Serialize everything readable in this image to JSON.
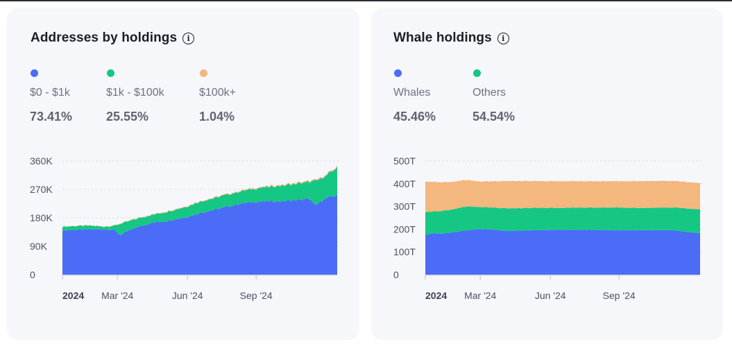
{
  "cards": [
    {
      "title": "Addresses by holdings",
      "legend": [
        {
          "label": "$0 - $1k",
          "value": "73.41%",
          "color": "#4a6cf7"
        },
        {
          "label": "$1k - $100k",
          "value": "25.55%",
          "color": "#16c784"
        },
        {
          "label": "$100k+",
          "value": "1.04%",
          "color": "#f4b77e"
        }
      ]
    },
    {
      "title": "Whale holdings",
      "legend": [
        {
          "label": "Whales",
          "value": "45.46%",
          "color": "#4a6cf7"
        },
        {
          "label": "Others",
          "value": "54.54%",
          "color": "#16c784"
        }
      ]
    }
  ],
  "chart_data": [
    {
      "type": "area",
      "stacked": true,
      "title": "Addresses by holdings",
      "ylim": [
        0,
        360000
      ],
      "yticks": [
        "360K",
        "270K",
        "180K",
        "90K",
        "0"
      ],
      "xticks": [
        {
          "label": "2024",
          "bold": true,
          "t": 0.0
        },
        {
          "label": "Mar '24",
          "bold": false,
          "t": 0.2
        },
        {
          "label": "Jun '24",
          "bold": false,
          "t": 0.455
        },
        {
          "label": "Sep '24",
          "bold": false,
          "t": 0.705
        }
      ],
      "grid": true,
      "series": [
        {
          "name": "$0 - $1k",
          "color": "#4a6cf7",
          "points": [
            [
              0.0,
              140000
            ],
            [
              0.05,
              142000
            ],
            [
              0.1,
              143000
            ],
            [
              0.15,
              143000
            ],
            [
              0.19,
              142000
            ],
            [
              0.21,
              124000
            ],
            [
              0.23,
              135000
            ],
            [
              0.27,
              150000
            ],
            [
              0.33,
              165000
            ],
            [
              0.38,
              170000
            ],
            [
              0.45,
              182000
            ],
            [
              0.5,
              195000
            ],
            [
              0.55,
              205000
            ],
            [
              0.6,
              215000
            ],
            [
              0.65,
              225000
            ],
            [
              0.7,
              230000
            ],
            [
              0.75,
              232000
            ],
            [
              0.8,
              232000
            ],
            [
              0.85,
              236000
            ],
            [
              0.9,
              240000
            ],
            [
              0.92,
              218000
            ],
            [
              0.95,
              238000
            ],
            [
              0.97,
              244000
            ],
            [
              1.0,
              252000
            ]
          ]
        },
        {
          "name": "$1k - $100k",
          "color": "#16c784",
          "points": [
            [
              0.0,
              12000
            ],
            [
              0.05,
              12000
            ],
            [
              0.1,
              12000
            ],
            [
              0.15,
              9000
            ],
            [
              0.19,
              13000
            ],
            [
              0.21,
              37000
            ],
            [
              0.23,
              31000
            ],
            [
              0.27,
              27000
            ],
            [
              0.33,
              25000
            ],
            [
              0.38,
              29000
            ],
            [
              0.45,
              33000
            ],
            [
              0.5,
              36000
            ],
            [
              0.55,
              37000
            ],
            [
              0.6,
              38000
            ],
            [
              0.65,
              39000
            ],
            [
              0.7,
              42000
            ],
            [
              0.75,
              45000
            ],
            [
              0.8,
              50000
            ],
            [
              0.85,
              52000
            ],
            [
              0.9,
              54000
            ],
            [
              0.92,
              79000
            ],
            [
              0.95,
              70000
            ],
            [
              0.97,
              76000
            ],
            [
              1.0,
              88000
            ]
          ]
        },
        {
          "name": "$100k+",
          "color": "#f4b77e",
          "points": [
            [
              0.0,
              800
            ],
            [
              0.1,
              900
            ],
            [
              0.2,
              1200
            ],
            [
              0.3,
              1500
            ],
            [
              0.4,
              1800
            ],
            [
              0.5,
              2100
            ],
            [
              0.6,
              2400
            ],
            [
              0.7,
              2700
            ],
            [
              0.8,
              3000
            ],
            [
              0.9,
              3200
            ],
            [
              1.0,
              3500
            ]
          ]
        }
      ]
    },
    {
      "type": "area",
      "stacked": true,
      "title": "Whale holdings",
      "ylim": [
        0,
        500
      ],
      "yticks": [
        "500T",
        "400T",
        "300T",
        "200T",
        "100T",
        "0"
      ],
      "xticks": [
        {
          "label": "2024",
          "bold": true,
          "t": 0.0
        },
        {
          "label": "Mar '24",
          "bold": false,
          "t": 0.2
        },
        {
          "label": "Jun '24",
          "bold": false,
          "t": 0.455
        },
        {
          "label": "Sep '24",
          "bold": false,
          "t": 0.705
        }
      ],
      "grid": true,
      "series": [
        {
          "name": "Whales",
          "color": "#4a6cf7",
          "points": [
            [
              0.0,
              175
            ],
            [
              0.03,
              182
            ],
            [
              0.06,
              180
            ],
            [
              0.1,
              187
            ],
            [
              0.15,
              195
            ],
            [
              0.2,
              200
            ],
            [
              0.25,
              198
            ],
            [
              0.3,
              192
            ],
            [
              0.4,
              195
            ],
            [
              0.5,
              197
            ],
            [
              0.6,
              197
            ],
            [
              0.7,
              195
            ],
            [
              0.8,
              195
            ],
            [
              0.9,
              195
            ],
            [
              0.95,
              188
            ],
            [
              1.0,
              182
            ]
          ]
        },
        {
          "name": "Others",
          "color": "#16c784",
          "points": [
            [
              0.0,
              100
            ],
            [
              0.03,
              96
            ],
            [
              0.06,
              100
            ],
            [
              0.1,
              101
            ],
            [
              0.15,
              105
            ],
            [
              0.2,
              97
            ],
            [
              0.25,
              97
            ],
            [
              0.3,
              100
            ],
            [
              0.4,
              98
            ],
            [
              0.5,
              97
            ],
            [
              0.6,
              98
            ],
            [
              0.7,
              100
            ],
            [
              0.8,
              98
            ],
            [
              0.9,
              100
            ],
            [
              0.95,
              103
            ],
            [
              1.0,
              105
            ]
          ]
        },
        {
          "name": "$100k+",
          "color": "#f4b77e",
          "points": [
            [
              0.0,
              134
            ],
            [
              0.1,
              121
            ],
            [
              0.2,
              112
            ],
            [
              0.3,
              120
            ],
            [
              0.4,
              118
            ],
            [
              0.5,
              117
            ],
            [
              0.6,
              116
            ],
            [
              0.7,
              116
            ],
            [
              0.8,
              118
            ],
            [
              0.9,
              117
            ],
            [
              1.0,
              116
            ]
          ]
        }
      ]
    }
  ]
}
